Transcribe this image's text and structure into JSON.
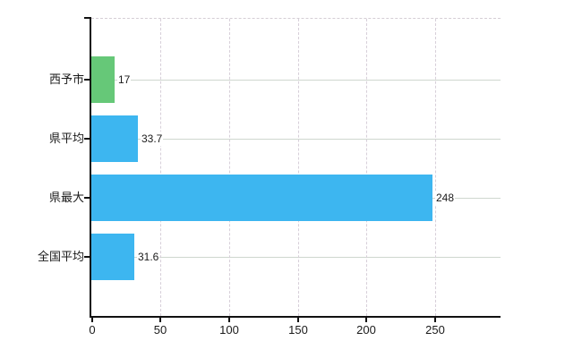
{
  "chart_data": {
    "type": "bar",
    "orientation": "horizontal",
    "title": "",
    "categories": [
      "西予市",
      "県平均",
      "県最大",
      "全国平均"
    ],
    "values": [
      17,
      33.7,
      248,
      31.6
    ],
    "value_labels": [
      "17",
      "33.7",
      "248",
      "31.6"
    ],
    "bar_colors": [
      "#66c878",
      "#3db6f0",
      "#3db6f0",
      "#3db6f0"
    ],
    "x_axis": {
      "tick_labels": [
        "0",
        "50",
        "100",
        "150",
        "200",
        "250"
      ],
      "tick_values": [
        0,
        50,
        100,
        150,
        200,
        250
      ],
      "min": 0,
      "max": 297.5
    },
    "y_axis": {
      "label": ""
    },
    "legend": "none",
    "grid": {
      "horizontal_style": "solid",
      "vertical_style": "dashed",
      "top_border_style": "dashed"
    }
  },
  "colors": {
    "background": "#ffffff",
    "bar_green": "#66c878",
    "bar_blue": "#3db6f0",
    "axis_line": "#111111",
    "grid_horizontal": "#cfd7cf",
    "grid_vertical": "#d7cfd9",
    "text": "#1a1a1a"
  }
}
